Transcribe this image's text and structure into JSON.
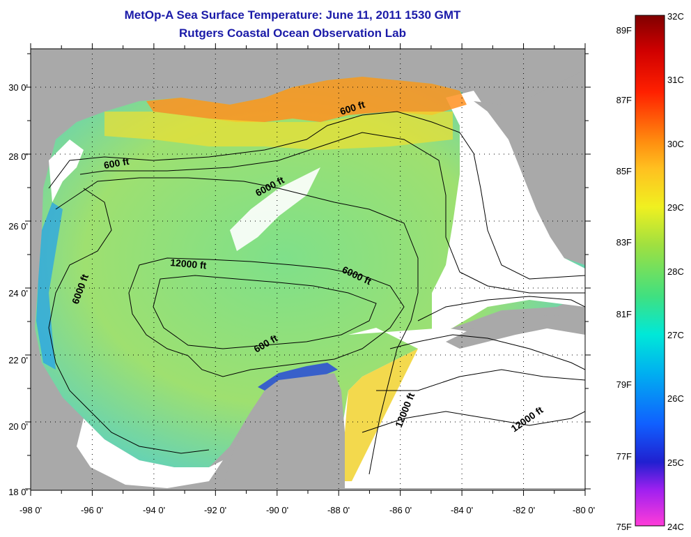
{
  "title": {
    "line1": "MetOp-A Sea Surface Temperature:  June 11, 2011 1530 GMT",
    "line2": "Rutgers Coastal Ocean Observation Lab"
  },
  "axes": {
    "lon_labels": [
      "-98 0'",
      "-96 0'",
      "-94 0'",
      "-92 0'",
      "-90 0'",
      "-88 0'",
      "-86 0'",
      "-84 0'",
      "-82 0'",
      "-80 0'"
    ],
    "lat_labels": [
      "30 0'",
      "28 0'",
      "26 0'",
      "24 0'",
      "22 0'",
      "20 0'",
      "18 0'"
    ]
  },
  "contour_labels": [
    {
      "text": "600 ft"
    },
    {
      "text": "600 ft"
    },
    {
      "text": "6000 ft"
    },
    {
      "text": "12000 ft"
    },
    {
      "text": "6000 ft"
    },
    {
      "text": "6000 ft"
    },
    {
      "text": "600 ft"
    },
    {
      "text": "12000 ft"
    },
    {
      "text": "12000 ft"
    }
  ],
  "colorbar": {
    "celsius": [
      "32C",
      "31C",
      "30C",
      "29C",
      "28C",
      "27C",
      "26C",
      "25C",
      "24C"
    ],
    "fahrenheit": [
      "89F",
      "87F",
      "85F",
      "83F",
      "81F",
      "79F",
      "77F",
      "75F"
    ]
  },
  "colors": {
    "land": "#a9a9a9",
    "cloud": "#ffffff",
    "title": "#1a1aa8"
  }
}
